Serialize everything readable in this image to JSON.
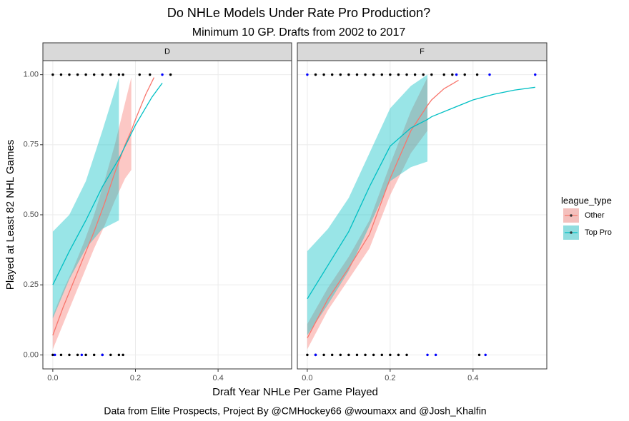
{
  "chart_data": {
    "type": "line",
    "title": "Do NHLe Models Under Rate Pro Production?",
    "subtitle": "Minimum 10 GP. Drafts from 2002 to 2017",
    "x_label": "Draft Year NHLe Per Game Played",
    "y_label": "Played at Least 82 NHL Games",
    "caption": "Data from Elite Prospects, Project By @CMHockey66 @woumaxx and @Josh_Khalfin",
    "legend_title": "league_type",
    "legend_position": "right",
    "grid": true,
    "xlim": [
      -0.024,
      0.578
    ],
    "ylim": [
      -0.05,
      1.05
    ],
    "xticks": [
      {
        "value": 0,
        "label": "0.0"
      },
      {
        "value": 0.2,
        "label": "0.2"
      },
      {
        "value": 0.4,
        "label": "0.4"
      }
    ],
    "yticks": [
      {
        "value": 0,
        "label": "0.00"
      },
      {
        "value": 0.25,
        "label": "0.25"
      },
      {
        "value": 0.5,
        "label": "0.50"
      },
      {
        "value": 0.75,
        "label": "0.75"
      },
      {
        "value": 1,
        "label": "1.00"
      }
    ],
    "series": [
      {
        "name": "Other",
        "color": "#F8766D"
      },
      {
        "name": "Top Pro",
        "color": "#00BFC4"
      }
    ],
    "panels": [
      {
        "label": "D",
        "fits": [
          {
            "x": [
              0,
              0.025,
              0.05,
              0.075,
              0.1,
              0.125,
              0.15,
              0.175,
              0.19,
              0.2,
              0.225,
              0.245
            ],
            "values": [
              0.07,
              0.17,
              0.26,
              0.35,
              0.44,
              0.54,
              0.65,
              0.75,
              0.8,
              0.84,
              0.93,
              0.99
            ],
            "lower": [
              0.02,
              0.11,
              0.2,
              0.29,
              0.38,
              0.46,
              0.55,
              0.63,
              0.66,
              null,
              null,
              null
            ],
            "upper": [
              0.14,
              0.23,
              0.31,
              0.4,
              0.5,
              0.62,
              0.75,
              0.9,
              0.99,
              null,
              null,
              null
            ]
          },
          {
            "x": [
              0,
              0.04,
              0.08,
              0.12,
              0.16,
              0.2,
              0.24,
              0.265
            ],
            "values": [
              0.25,
              0.37,
              0.48,
              0.6,
              0.7,
              0.82,
              0.92,
              0.97
            ],
            "lower": [
              0.13,
              0.27,
              0.38,
              0.45,
              0.48,
              null,
              null,
              null
            ],
            "upper": [
              0.44,
              0.5,
              0.62,
              0.8,
              0.99,
              null,
              null,
              null
            ]
          }
        ],
        "points": [
          {
            "color": "#000000",
            "x": [
              0,
              0.02,
              0.04,
              0.06,
              0.08,
              0.1,
              0.12,
              0.14,
              0.16,
              0.17,
              0.21,
              0.235,
              0.285,
              0,
              0.02,
              0.04,
              0.06,
              0.08,
              0.1,
              0.12,
              0.14,
              0.16,
              0.17
            ],
            "values": [
              1,
              1,
              1,
              1,
              1,
              1,
              1,
              1,
              1,
              1,
              1,
              1,
              1,
              0,
              0,
              0,
              0,
              0,
              0,
              0,
              0,
              0,
              0
            ]
          },
          {
            "color": "#0000FF",
            "x": [
              0.265,
              0.005,
              0.07,
              0.12
            ],
            "values": [
              1,
              0,
              0,
              0
            ]
          }
        ]
      },
      {
        "label": "F",
        "fits": [
          {
            "x": [
              0,
              0.05,
              0.1,
              0.15,
              0.2,
              0.25,
              0.29,
              0.3,
              0.33,
              0.365
            ],
            "values": [
              0.06,
              0.2,
              0.31,
              0.43,
              0.63,
              0.8,
              0.89,
              0.91,
              0.95,
              0.98
            ],
            "lower": [
              0.02,
              0.16,
              0.27,
              0.38,
              0.57,
              0.72,
              0.8,
              null,
              null,
              null
            ],
            "upper": [
              0.11,
              0.24,
              0.35,
              0.48,
              0.68,
              0.87,
              0.99,
              null,
              null,
              null
            ]
          },
          {
            "x": [
              0,
              0.05,
              0.1,
              0.15,
              0.2,
              0.25,
              0.29,
              0.3,
              0.35,
              0.4,
              0.45,
              0.5,
              0.55
            ],
            "values": [
              0.2,
              0.32,
              0.44,
              0.6,
              0.745,
              0.81,
              0.84,
              0.85,
              0.88,
              0.91,
              0.93,
              0.945,
              0.955
            ],
            "lower": [
              0.07,
              0.18,
              0.3,
              0.46,
              0.62,
              0.67,
              0.69,
              null,
              null,
              null,
              null,
              null,
              null
            ],
            "upper": [
              0.37,
              0.45,
              0.56,
              0.72,
              0.88,
              0.96,
              1.0,
              null,
              null,
              null,
              null,
              null,
              null
            ]
          }
        ],
        "points": [
          {
            "color": "#000000",
            "x": [
              0.02,
              0.04,
              0.06,
              0.08,
              0.1,
              0.12,
              0.14,
              0.16,
              0.18,
              0.2,
              0.22,
              0.24,
              0.26,
              0.28,
              0.3,
              0.33,
              0.35,
              0.38,
              0.41,
              0,
              0.02,
              0.04,
              0.06,
              0.08,
              0.1,
              0.12,
              0.14,
              0.16,
              0.18,
              0.2,
              0.22,
              0.24,
              0.415
            ],
            "values": [
              1,
              1,
              1,
              1,
              1,
              1,
              1,
              1,
              1,
              1,
              1,
              1,
              1,
              1,
              1,
              1,
              1,
              1,
              1,
              0,
              0,
              0,
              0,
              0,
              0,
              0,
              0,
              0,
              0,
              0,
              0,
              0,
              0
            ]
          },
          {
            "color": "#0000FF",
            "x": [
              0,
              0.36,
              0.44,
              0.55,
              0.02,
              0.29,
              0.31,
              0.43
            ],
            "values": [
              1,
              1,
              1,
              1,
              0,
              0,
              0,
              0
            ]
          }
        ]
      }
    ]
  }
}
